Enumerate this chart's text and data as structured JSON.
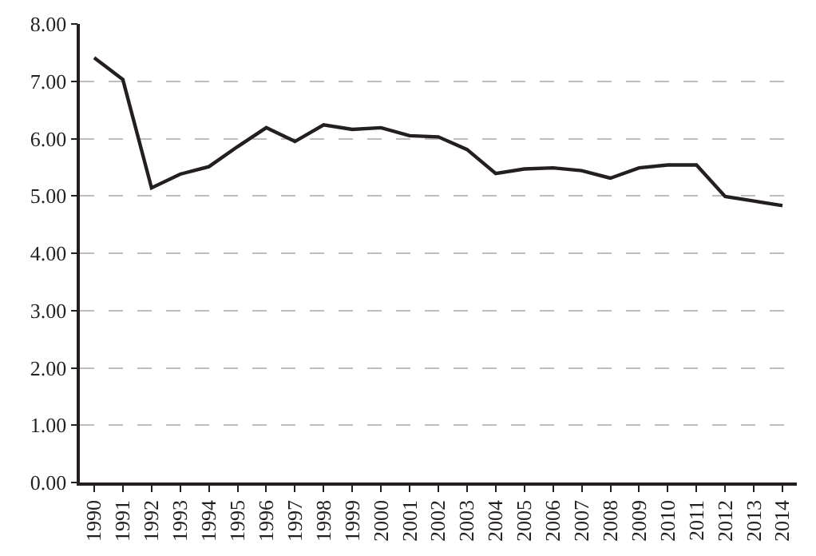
{
  "chart_data": {
    "type": "line",
    "categories": [
      "1990",
      "1991",
      "1992",
      "1993",
      "1994",
      "1995",
      "1996",
      "1997",
      "1998",
      "1999",
      "2000",
      "2001",
      "2002",
      "2003",
      "2004",
      "2005",
      "2006",
      "2007",
      "2008",
      "2009",
      "2010",
      "2011",
      "2012",
      "2013",
      "2014"
    ],
    "series": [
      {
        "color": "#231f20",
        "values": [
          7.41,
          7.03,
          5.14,
          5.38,
          5.51,
          5.86,
          6.19,
          5.95,
          6.24,
          6.16,
          6.19,
          6.05,
          6.03,
          5.81,
          5.39,
          5.47,
          5.49,
          5.44,
          5.31,
          5.49,
          5.54,
          5.54,
          4.99,
          4.91,
          4.83
        ]
      }
    ],
    "ylim": [
      0,
      8
    ],
    "yticks": [
      {
        "value": 0,
        "label": "0.00"
      },
      {
        "value": 1,
        "label": "1.00"
      },
      {
        "value": 2,
        "label": "2.00"
      },
      {
        "value": 3,
        "label": "3.00"
      },
      {
        "value": 4,
        "label": "4.00"
      },
      {
        "value": 5,
        "label": "5.00"
      },
      {
        "value": 6,
        "label": "6.00"
      },
      {
        "value": 7,
        "label": "7.00"
      },
      {
        "value": 8,
        "label": "8.00"
      }
    ],
    "grid": "y",
    "marker": "none",
    "line_style": "solid",
    "legend": false
  }
}
